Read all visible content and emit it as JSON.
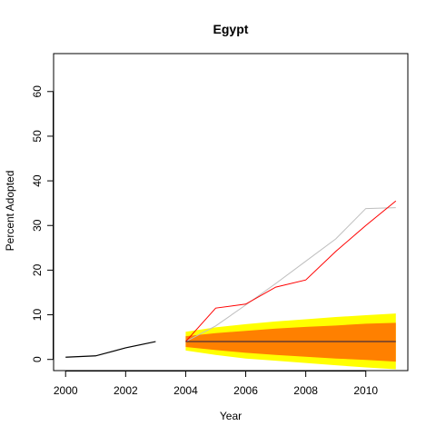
{
  "chart_data": {
    "type": "line",
    "title": "Egypt",
    "xlabel": "Year",
    "ylabel": "Percent Adopted",
    "xlim": [
      1999.6,
      2011.4
    ],
    "ylim": [
      -2.5,
      68.5
    ],
    "x_ticks": [
      2000,
      2002,
      2004,
      2006,
      2008,
      2010
    ],
    "y_ticks": [
      0,
      10,
      20,
      30,
      40,
      50,
      60
    ],
    "grid": false,
    "colors": {
      "actual": "#ff0000",
      "history": "#000000",
      "reference": "#bebebe",
      "forecast": "#1a1a4a",
      "band_outer": "#ffff00",
      "band_inner": "#ff8000"
    },
    "series": [
      {
        "id": "history",
        "x": [
          2000,
          2001,
          2002,
          2003
        ],
        "values": [
          0.5,
          0.8,
          2.6,
          4.0
        ]
      },
      {
        "id": "actual",
        "x": [
          2004,
          2005,
          2006,
          2007,
          2008,
          2009,
          2010,
          2011
        ],
        "values": [
          4.0,
          11.5,
          12.4,
          16.2,
          17.8,
          24.2,
          30.0,
          35.5
        ]
      },
      {
        "id": "reference",
        "x": [
          2004,
          2005,
          2006,
          2007,
          2008,
          2009,
          2010,
          2011
        ],
        "values": [
          4.0,
          7.5,
          12.2,
          17.0,
          22.0,
          27.0,
          33.8,
          34.0
        ]
      },
      {
        "id": "forecast",
        "x": [
          2004,
          2011
        ],
        "values": [
          4.0,
          4.0
        ]
      }
    ],
    "bands": [
      {
        "id": "outer",
        "x": [
          2004,
          2005,
          2006,
          2007,
          2008,
          2009,
          2010,
          2011
        ],
        "lower": [
          2.0,
          1.0,
          0.2,
          -0.3,
          -0.8,
          -1.3,
          -1.8,
          -2.2
        ],
        "upper": [
          6.2,
          7.2,
          7.9,
          8.5,
          9.0,
          9.5,
          9.9,
          10.3
        ]
      },
      {
        "id": "inner",
        "x": [
          2004,
          2005,
          2006,
          2007,
          2008,
          2009,
          2010,
          2011
        ],
        "lower": [
          2.8,
          2.1,
          1.5,
          1.0,
          0.6,
          0.2,
          -0.1,
          -0.5
        ],
        "upper": [
          5.2,
          5.9,
          6.4,
          6.9,
          7.3,
          7.6,
          8.0,
          8.2
        ]
      }
    ]
  }
}
